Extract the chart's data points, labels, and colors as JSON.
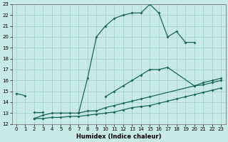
{
  "xlabel": "Humidex (Indice chaleur)",
  "bg_color": "#c8eae4",
  "grid_color": "#a0ccc4",
  "line_color": "#1a6655",
  "xlim": [
    -0.5,
    23.5
  ],
  "ylim": [
    12,
    23
  ],
  "xticks": [
    0,
    1,
    2,
    3,
    4,
    5,
    6,
    7,
    8,
    9,
    10,
    11,
    12,
    13,
    14,
    15,
    16,
    17,
    18,
    19,
    20,
    21,
    22,
    23
  ],
  "yticks": [
    12,
    13,
    14,
    15,
    16,
    17,
    18,
    19,
    20,
    21,
    22,
    23
  ],
  "lines": [
    {
      "x": [
        0,
        1,
        2,
        3,
        4,
        5,
        6,
        7,
        8,
        9,
        10,
        11,
        12,
        13,
        14,
        15,
        16,
        17,
        18,
        19,
        20
      ],
      "y": [
        14.8,
        14.6,
        null,
        null,
        null,
        null,
        null,
        13.0,
        16.2,
        20.0,
        21.0,
        21.7,
        22.0,
        22.2,
        22.2,
        23.0,
        22.2,
        20.0,
        20.5,
        19.5,
        19.5
      ]
    },
    {
      "x": [
        2,
        3,
        4,
        5,
        6,
        7,
        8,
        9,
        10,
        11,
        12,
        13,
        14,
        15,
        16,
        17,
        20,
        21,
        22,
        23
      ],
      "y": [
        13.1,
        13.1,
        null,
        null,
        null,
        null,
        null,
        null,
        14.5,
        15.0,
        15.5,
        16.0,
        16.5,
        17.0,
        17.0,
        17.2,
        15.5,
        15.8,
        16.0,
        16.2
      ]
    },
    {
      "x": [
        2,
        3,
        4,
        5,
        6,
        7,
        8,
        9,
        10,
        11,
        12,
        13,
        14,
        15,
        20,
        21,
        22,
        23
      ],
      "y": [
        12.5,
        12.8,
        13.0,
        13.0,
        13.0,
        13.0,
        13.2,
        13.2,
        13.5,
        13.7,
        13.9,
        14.1,
        14.3,
        14.5,
        15.5,
        15.6,
        15.8,
        16.0
      ]
    },
    {
      "x": [
        2,
        3,
        4,
        5,
        6,
        7,
        8,
        9,
        10,
        11,
        12,
        13,
        14,
        15,
        16,
        17,
        18,
        19,
        20,
        21,
        22,
        23
      ],
      "y": [
        12.5,
        12.5,
        12.6,
        12.6,
        12.7,
        12.7,
        12.8,
        12.9,
        13.0,
        13.1,
        13.3,
        13.5,
        13.6,
        13.7,
        13.9,
        14.1,
        14.3,
        14.5,
        14.7,
        14.9,
        15.1,
        15.3
      ]
    }
  ]
}
